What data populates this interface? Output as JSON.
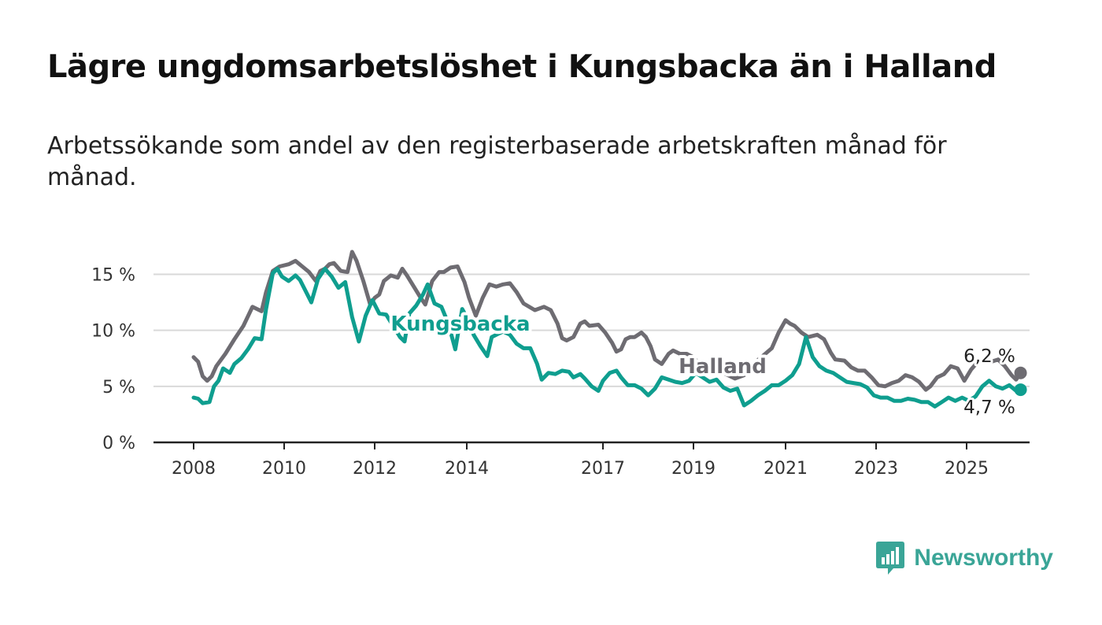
{
  "title": "Lägre ungdomsarbetslöshet i Kungsbacka än i Halland",
  "subtitle": "Arbetssökande som andel av den registerbaserade arbetskraften månad för månad.",
  "brand": {
    "name": "Newsworthy",
    "icon": "bar-chart-speech-bubble-icon",
    "color": "#3aa597"
  },
  "chart_data": {
    "type": "line",
    "title": "Lägre ungdomsarbetslöshet i Kungsbacka än i Halland",
    "subtitle": "Arbetssökande som andel av den registerbaserade arbetskraften månad för månad.",
    "xlabel": "",
    "ylabel": "",
    "x_range": [
      2007.9,
      2025.4
    ],
    "ylim": [
      0,
      17
    ],
    "y_ticks": [
      0,
      5,
      10,
      15
    ],
    "y_tick_labels": [
      "0 %",
      "5 %",
      "10 %",
      "15 %"
    ],
    "x_ticks": [
      2008,
      2010,
      2012,
      2014,
      2017,
      2019,
      2021,
      2023,
      2025
    ],
    "x_tick_labels": [
      "2008",
      "2010",
      "2012",
      "2014",
      "2017",
      "2019",
      "2021",
      "2023",
      "2025"
    ],
    "grid": "horizontal",
    "legend": "inline labels",
    "end_labels": [
      "6,2 %",
      "4,7 %"
    ],
    "series": [
      {
        "name": "Halland",
        "color": "#6e6c72",
        "end_value": 6.2,
        "end_label": "6,2 %",
        "points": [
          [
            2008.0,
            7.6
          ],
          [
            2008.1,
            7.2
          ],
          [
            2008.2,
            5.9
          ],
          [
            2008.3,
            5.5
          ],
          [
            2008.4,
            5.9
          ],
          [
            2008.5,
            6.8
          ],
          [
            2008.7,
            7.9
          ],
          [
            2008.9,
            9.2
          ],
          [
            2009.1,
            10.4
          ],
          [
            2009.3,
            12.1
          ],
          [
            2009.5,
            11.7
          ],
          [
            2009.6,
            13.4
          ],
          [
            2009.75,
            15.3
          ],
          [
            2009.9,
            15.7
          ],
          [
            2010.1,
            15.9
          ],
          [
            2010.25,
            16.2
          ],
          [
            2010.4,
            15.7
          ],
          [
            2010.55,
            15.2
          ],
          [
            2010.7,
            14.4
          ],
          [
            2010.8,
            15.3
          ],
          [
            2010.9,
            15.5
          ],
          [
            2011.0,
            15.9
          ],
          [
            2011.1,
            16.0
          ],
          [
            2011.25,
            15.3
          ],
          [
            2011.4,
            15.2
          ],
          [
            2011.5,
            17.0
          ],
          [
            2011.6,
            16.2
          ],
          [
            2011.75,
            14.4
          ],
          [
            2011.9,
            12.3
          ],
          [
            2012.0,
            12.9
          ],
          [
            2012.1,
            13.2
          ],
          [
            2012.2,
            14.4
          ],
          [
            2012.35,
            14.9
          ],
          [
            2012.5,
            14.7
          ],
          [
            2012.6,
            15.5
          ],
          [
            2012.7,
            14.9
          ],
          [
            2012.85,
            13.9
          ],
          [
            2013.0,
            12.9
          ],
          [
            2013.1,
            12.3
          ],
          [
            2013.25,
            14.4
          ],
          [
            2013.4,
            15.2
          ],
          [
            2013.5,
            15.2
          ],
          [
            2013.65,
            15.6
          ],
          [
            2013.8,
            15.7
          ],
          [
            2013.95,
            14.3
          ],
          [
            2014.05,
            12.9
          ],
          [
            2014.2,
            11.3
          ],
          [
            2014.35,
            12.9
          ],
          [
            2014.5,
            14.1
          ],
          [
            2014.65,
            13.9
          ],
          [
            2014.8,
            14.1
          ],
          [
            2014.95,
            14.2
          ],
          [
            2015.1,
            13.4
          ],
          [
            2015.25,
            12.4
          ],
          [
            2015.5,
            11.8
          ],
          [
            2015.7,
            12.1
          ],
          [
            2015.85,
            11.8
          ],
          [
            2016.0,
            10.6
          ],
          [
            2016.1,
            9.3
          ],
          [
            2016.2,
            9.1
          ],
          [
            2016.35,
            9.4
          ],
          [
            2016.5,
            10.6
          ],
          [
            2016.6,
            10.8
          ],
          [
            2016.7,
            10.4
          ],
          [
            2016.9,
            10.5
          ],
          [
            2017.05,
            9.8
          ],
          [
            2017.2,
            8.9
          ],
          [
            2017.3,
            8.1
          ],
          [
            2017.4,
            8.3
          ],
          [
            2017.5,
            9.2
          ],
          [
            2017.6,
            9.4
          ],
          [
            2017.7,
            9.4
          ],
          [
            2017.85,
            9.8
          ],
          [
            2017.95,
            9.4
          ],
          [
            2018.05,
            8.6
          ],
          [
            2018.15,
            7.4
          ],
          [
            2018.3,
            7.0
          ],
          [
            2018.45,
            7.9
          ],
          [
            2018.55,
            8.2
          ],
          [
            2018.7,
            7.9
          ],
          [
            2018.85,
            7.9
          ],
          [
            2019.0,
            7.6
          ],
          [
            2019.15,
            6.9
          ],
          [
            2019.3,
            6.7
          ],
          [
            2019.5,
            6.5
          ],
          [
            2019.7,
            6.1
          ],
          [
            2019.9,
            5.7
          ],
          [
            2020.1,
            6.0
          ],
          [
            2020.3,
            7.0
          ],
          [
            2020.5,
            7.7
          ],
          [
            2020.7,
            8.4
          ],
          [
            2020.85,
            9.8
          ],
          [
            2021.0,
            10.9
          ],
          [
            2021.1,
            10.6
          ],
          [
            2021.2,
            10.4
          ],
          [
            2021.35,
            9.8
          ],
          [
            2021.5,
            9.4
          ],
          [
            2021.7,
            9.6
          ],
          [
            2021.85,
            9.2
          ],
          [
            2022.0,
            8.0
          ],
          [
            2022.1,
            7.4
          ],
          [
            2022.3,
            7.3
          ],
          [
            2022.45,
            6.7
          ],
          [
            2022.6,
            6.4
          ],
          [
            2022.75,
            6.4
          ],
          [
            2022.9,
            5.8
          ],
          [
            2023.05,
            5.1
          ],
          [
            2023.2,
            5.0
          ],
          [
            2023.35,
            5.3
          ],
          [
            2023.5,
            5.5
          ],
          [
            2023.65,
            6.0
          ],
          [
            2023.8,
            5.8
          ],
          [
            2023.95,
            5.4
          ],
          [
            2024.1,
            4.7
          ],
          [
            2024.2,
            5.0
          ],
          [
            2024.35,
            5.8
          ],
          [
            2024.5,
            6.1
          ],
          [
            2024.65,
            6.8
          ],
          [
            2024.8,
            6.6
          ],
          [
            2024.95,
            5.5
          ],
          [
            2025.1,
            6.5
          ],
          [
            2025.25,
            7.2
          ],
          [
            2025.4,
            7.3
          ],
          [
            2025.55,
            7.2
          ],
          [
            2025.7,
            7.4
          ],
          [
            2025.85,
            6.8
          ],
          [
            2026.0,
            6.0
          ],
          [
            2026.1,
            5.6
          ],
          [
            2026.2,
            6.2
          ]
        ]
      },
      {
        "name": "Kungsbacka",
        "color": "#0f9e8f",
        "end_value": 4.7,
        "end_label": "4,7 %",
        "points": [
          [
            2008.0,
            4.0
          ],
          [
            2008.1,
            3.9
          ],
          [
            2008.2,
            3.5
          ],
          [
            2008.35,
            3.6
          ],
          [
            2008.45,
            5.0
          ],
          [
            2008.55,
            5.5
          ],
          [
            2008.65,
            6.6
          ],
          [
            2008.8,
            6.2
          ],
          [
            2008.9,
            7.0
          ],
          [
            2009.05,
            7.5
          ],
          [
            2009.2,
            8.3
          ],
          [
            2009.35,
            9.3
          ],
          [
            2009.5,
            9.2
          ],
          [
            2009.6,
            11.9
          ],
          [
            2009.75,
            15.1
          ],
          [
            2009.85,
            15.5
          ],
          [
            2009.95,
            14.8
          ],
          [
            2010.1,
            14.4
          ],
          [
            2010.25,
            14.9
          ],
          [
            2010.35,
            14.5
          ],
          [
            2010.5,
            13.3
          ],
          [
            2010.6,
            12.5
          ],
          [
            2010.75,
            14.6
          ],
          [
            2010.9,
            15.5
          ],
          [
            2011.05,
            14.8
          ],
          [
            2011.2,
            13.8
          ],
          [
            2011.35,
            14.3
          ],
          [
            2011.5,
            11.2
          ],
          [
            2011.65,
            9.0
          ],
          [
            2011.8,
            11.3
          ],
          [
            2011.95,
            12.7
          ],
          [
            2012.1,
            11.5
          ],
          [
            2012.25,
            11.4
          ],
          [
            2012.4,
            10.4
          ],
          [
            2012.55,
            9.4
          ],
          [
            2012.65,
            9.0
          ],
          [
            2012.75,
            11.5
          ],
          [
            2012.9,
            12.2
          ],
          [
            2013.05,
            13.2
          ],
          [
            2013.15,
            14.1
          ],
          [
            2013.3,
            12.4
          ],
          [
            2013.45,
            12.1
          ],
          [
            2013.6,
            10.6
          ],
          [
            2013.75,
            8.3
          ],
          [
            2013.9,
            11.9
          ],
          [
            2014.05,
            10.8
          ],
          [
            2014.15,
            9.6
          ],
          [
            2014.3,
            8.6
          ],
          [
            2014.45,
            7.7
          ],
          [
            2014.55,
            9.4
          ],
          [
            2014.65,
            9.6
          ],
          [
            2014.8,
            9.9
          ],
          [
            2014.95,
            9.6
          ],
          [
            2015.1,
            8.8
          ],
          [
            2015.25,
            8.4
          ],
          [
            2015.4,
            8.4
          ],
          [
            2015.55,
            7.0
          ],
          [
            2015.65,
            5.6
          ],
          [
            2015.8,
            6.2
          ],
          [
            2015.95,
            6.1
          ],
          [
            2016.1,
            6.4
          ],
          [
            2016.25,
            6.3
          ],
          [
            2016.35,
            5.8
          ],
          [
            2016.5,
            6.1
          ],
          [
            2016.6,
            5.7
          ],
          [
            2016.75,
            5.0
          ],
          [
            2016.9,
            4.6
          ],
          [
            2017.0,
            5.5
          ],
          [
            2017.15,
            6.2
          ],
          [
            2017.3,
            6.4
          ],
          [
            2017.4,
            5.8
          ],
          [
            2017.55,
            5.1
          ],
          [
            2017.7,
            5.1
          ],
          [
            2017.85,
            4.8
          ],
          [
            2018.0,
            4.2
          ],
          [
            2018.15,
            4.8
          ],
          [
            2018.3,
            5.8
          ],
          [
            2018.45,
            5.6
          ],
          [
            2018.6,
            5.4
          ],
          [
            2018.75,
            5.3
          ],
          [
            2018.9,
            5.5
          ],
          [
            2019.05,
            6.2
          ],
          [
            2019.2,
            5.8
          ],
          [
            2019.35,
            5.4
          ],
          [
            2019.5,
            5.6
          ],
          [
            2019.65,
            4.9
          ],
          [
            2019.8,
            4.6
          ],
          [
            2019.95,
            4.8
          ],
          [
            2020.1,
            3.3
          ],
          [
            2020.25,
            3.7
          ],
          [
            2020.4,
            4.2
          ],
          [
            2020.55,
            4.6
          ],
          [
            2020.7,
            5.1
          ],
          [
            2020.85,
            5.1
          ],
          [
            2021.0,
            5.5
          ],
          [
            2021.15,
            6.0
          ],
          [
            2021.3,
            7.0
          ],
          [
            2021.45,
            9.4
          ],
          [
            2021.6,
            7.6
          ],
          [
            2021.75,
            6.8
          ],
          [
            2021.9,
            6.4
          ],
          [
            2022.05,
            6.2
          ],
          [
            2022.2,
            5.8
          ],
          [
            2022.35,
            5.4
          ],
          [
            2022.5,
            5.3
          ],
          [
            2022.65,
            5.2
          ],
          [
            2022.8,
            4.9
          ],
          [
            2022.95,
            4.2
          ],
          [
            2023.1,
            4.0
          ],
          [
            2023.25,
            4.0
          ],
          [
            2023.4,
            3.7
          ],
          [
            2023.55,
            3.7
          ],
          [
            2023.7,
            3.9
          ],
          [
            2023.85,
            3.8
          ],
          [
            2024.0,
            3.6
          ],
          [
            2024.15,
            3.6
          ],
          [
            2024.3,
            3.2
          ],
          [
            2024.45,
            3.6
          ],
          [
            2024.6,
            4.0
          ],
          [
            2024.75,
            3.7
          ],
          [
            2024.9,
            4.0
          ],
          [
            2025.05,
            3.7
          ],
          [
            2025.2,
            4.1
          ],
          [
            2025.35,
            5.0
          ],
          [
            2025.5,
            5.5
          ],
          [
            2025.65,
            5.0
          ],
          [
            2025.8,
            4.8
          ],
          [
            2025.95,
            5.1
          ],
          [
            2026.1,
            4.6
          ],
          [
            2026.2,
            4.7
          ]
        ]
      }
    ]
  }
}
